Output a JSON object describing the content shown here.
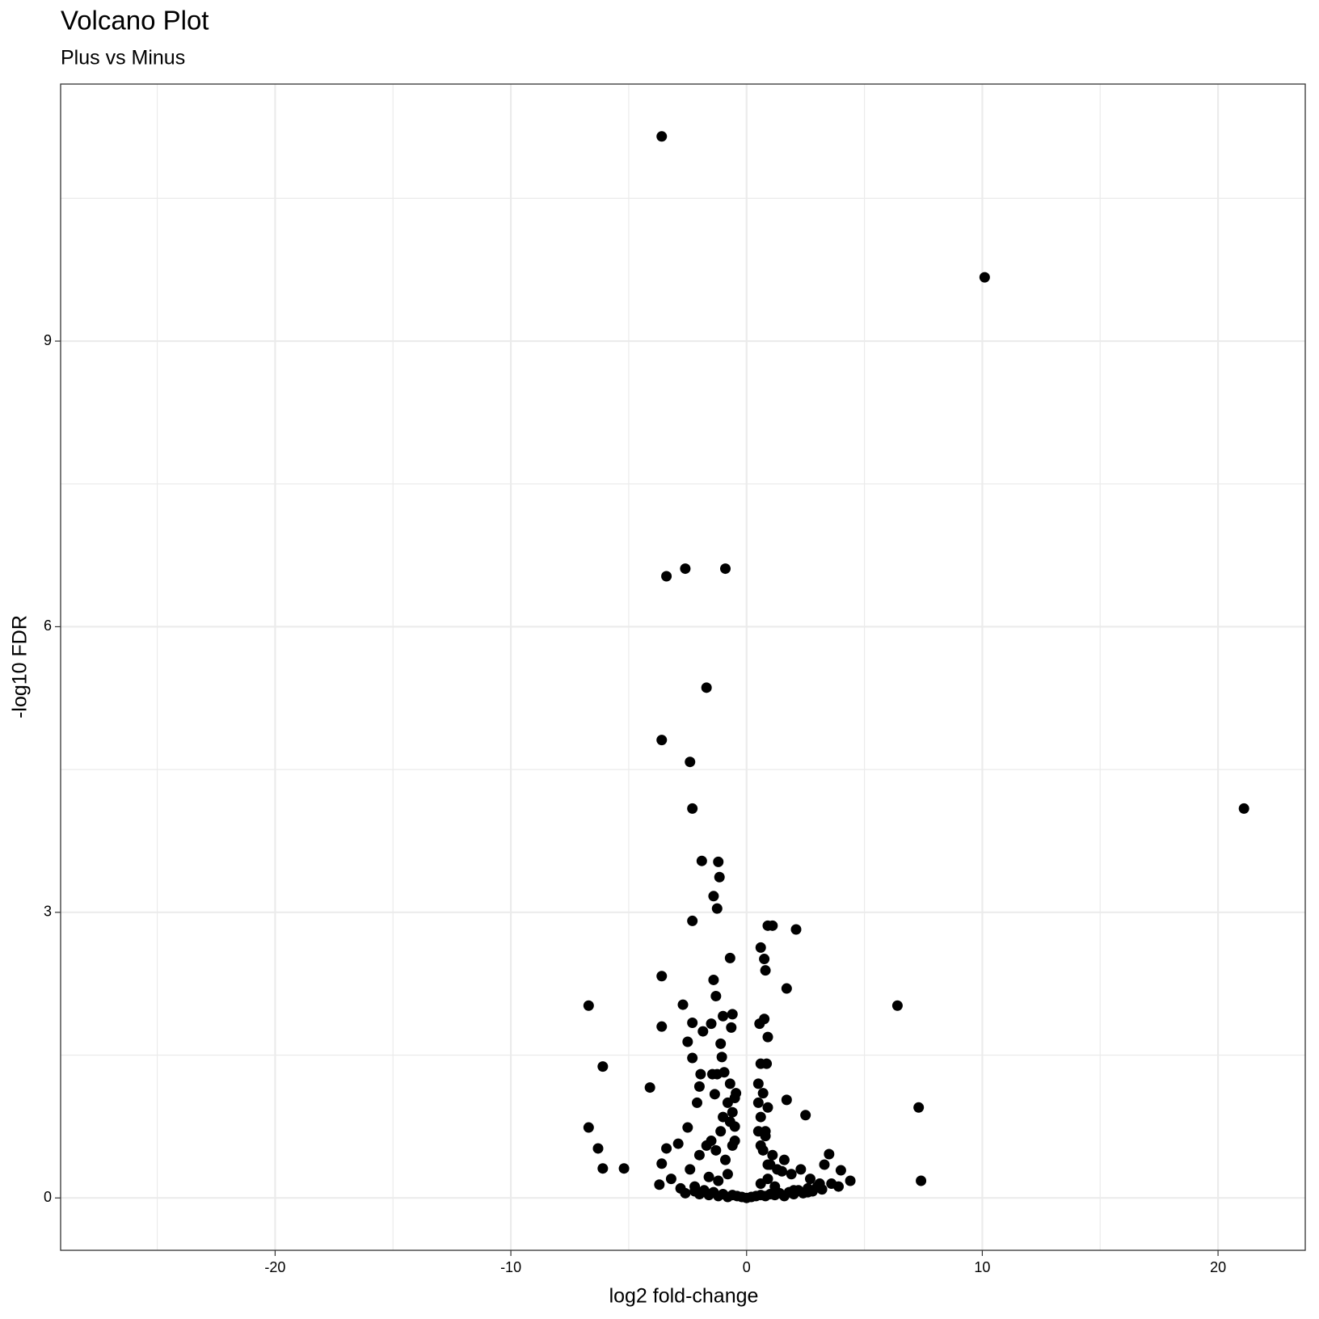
{
  "chart_data": {
    "type": "scatter",
    "title": "Volcano Plot",
    "subtitle": "Plus vs Minus",
    "x_label": "log2 fold-change",
    "y_label": "-log10 FDR",
    "color": "#000000",
    "grid": true,
    "xlim": [
      -29.1,
      23.7
    ],
    "ylim": [
      -0.55,
      11.7
    ],
    "xticks": [
      -20,
      -10,
      0,
      10,
      20
    ],
    "yticks": [
      0,
      3,
      6,
      9
    ],
    "x": [
      -3.6,
      10.1,
      21.1,
      -3.4,
      -2.6,
      -0.9,
      -1.7,
      -3.6,
      -2.4,
      -2.3,
      -1.9,
      -1.2,
      -1.15,
      -1.4,
      -1.25,
      -2.3,
      0.9,
      1.1,
      2.1,
      0.6,
      0.75,
      -0.7,
      0.8,
      -3.6,
      -1.4,
      1.7,
      -6.7,
      6.4,
      -2.7,
      -1.3,
      -1.0,
      -0.6,
      0.75,
      0.55,
      -3.6,
      -2.3,
      -1.5,
      -0.65,
      -1.85,
      0.9,
      -2.5,
      -1.1,
      -2.3,
      -1.05,
      -6.1,
      0.6,
      0.85,
      -1.95,
      -1.45,
      -1.25,
      -0.95,
      -2.0,
      -4.1,
      -1.35,
      -0.45,
      -2.1,
      1.7,
      7.3,
      -6.7,
      -2.5,
      2.5,
      -6.3,
      -6.1,
      -5.2,
      -3.6,
      -3.4,
      -2.9,
      7.4,
      4.4,
      4.0,
      3.5,
      3.3,
      -3.7,
      -3.2,
      -2.8,
      -2.6,
      -2.2,
      -2.0,
      -1.8,
      -1.6,
      -1.4,
      -1.2,
      -1.0,
      -0.8,
      -0.6,
      -0.4,
      -0.2,
      0.0,
      0.2,
      0.4,
      0.6,
      0.8,
      1.0,
      1.2,
      1.4,
      1.6,
      1.8,
      2.0,
      2.2,
      2.4,
      2.6,
      2.8,
      3.0,
      3.2,
      3.6,
      3.9,
      -2.4,
      -2.0,
      -1.7,
      -1.5,
      -1.3,
      -1.1,
      -0.9,
      -0.7,
      -0.5,
      0.5,
      0.7,
      0.9,
      1.1,
      1.3,
      1.6,
      1.9,
      2.3,
      2.7,
      3.1,
      -0.8,
      -0.6,
      -0.5,
      0.5,
      0.6,
      0.8,
      -0.7,
      -0.5,
      0.5,
      0.7,
      0.9,
      -1.0,
      -0.6,
      0.6,
      0.8,
      1.0,
      -0.8,
      0.6,
      0.9,
      -1.6,
      -1.2,
      1.2,
      1.5,
      2.0,
      -2.2,
      2.6
    ],
    "values": [
      11.15,
      9.67,
      4.09,
      6.53,
      6.61,
      6.61,
      5.36,
      4.81,
      4.58,
      4.09,
      3.54,
      3.53,
      3.37,
      3.17,
      3.04,
      2.91,
      2.86,
      2.86,
      2.82,
      2.63,
      2.51,
      2.52,
      2.39,
      2.33,
      2.29,
      2.2,
      2.02,
      2.02,
      2.03,
      2.12,
      1.91,
      1.93,
      1.88,
      1.83,
      1.8,
      1.84,
      1.83,
      1.79,
      1.75,
      1.69,
      1.64,
      1.62,
      1.47,
      1.48,
      1.38,
      1.41,
      1.41,
      1.3,
      1.3,
      1.3,
      1.32,
      1.17,
      1.16,
      1.09,
      1.1,
      1.0,
      1.03,
      0.95,
      0.74,
      0.74,
      0.87,
      0.52,
      0.31,
      0.31,
      0.36,
      0.52,
      0.57,
      0.18,
      0.18,
      0.29,
      0.46,
      0.35,
      0.14,
      0.2,
      0.1,
      0.05,
      0.12,
      0.04,
      0.08,
      0.03,
      0.06,
      0.02,
      0.04,
      0.01,
      0.03,
      0.02,
      0.01,
      0.0,
      0.01,
      0.02,
      0.03,
      0.02,
      0.04,
      0.03,
      0.05,
      0.02,
      0.06,
      0.04,
      0.08,
      0.05,
      0.1,
      0.07,
      0.12,
      0.09,
      0.15,
      0.12,
      0.3,
      0.45,
      0.55,
      0.6,
      0.5,
      0.7,
      0.4,
      0.8,
      0.6,
      0.7,
      0.5,
      0.35,
      0.45,
      0.3,
      0.4,
      0.25,
      0.3,
      0.2,
      0.15,
      1.0,
      0.9,
      0.75,
      1.0,
      0.85,
      0.7,
      1.2,
      1.05,
      1.2,
      1.1,
      0.95,
      0.85,
      0.55,
      0.55,
      0.65,
      0.35,
      0.25,
      0.15,
      0.2,
      0.22,
      0.18,
      0.12,
      0.28,
      0.08,
      0.07,
      0.06
    ]
  }
}
